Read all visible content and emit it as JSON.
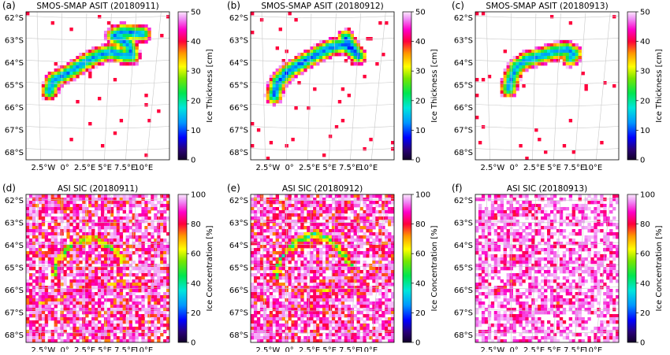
{
  "figure": {
    "panels": [
      {
        "label": "(a)",
        "title": "SMOS-SMAP ASIT (20180911)",
        "cbar_label": "Ice Thickness [cm]",
        "cbar_ticks": [
          "0",
          "10",
          "20",
          "30",
          "40",
          "50"
        ]
      },
      {
        "label": "(b)",
        "title": "SMOS-SMAP ASIT (20180912)",
        "cbar_label": "Ice Thickness [cm]",
        "cbar_ticks": [
          "0",
          "10",
          "20",
          "30",
          "40",
          "50"
        ]
      },
      {
        "label": "(c)",
        "title": "SMOS-SMAP ASIT (20180913)",
        "cbar_label": "Ice Thickness [cm]",
        "cbar_ticks": [
          "0",
          "10",
          "20",
          "30",
          "40",
          "50"
        ]
      },
      {
        "label": "(d)",
        "title": "ASI SIC (20180911)",
        "cbar_label": "Ice Concentration [%]",
        "cbar_ticks": [
          "0",
          "20",
          "40",
          "60",
          "80",
          "100"
        ]
      },
      {
        "label": "(e)",
        "title": "ASI SIC (20180912)",
        "cbar_label": "Ice Concentration [%]",
        "cbar_ticks": [
          "0",
          "20",
          "40",
          "60",
          "80",
          "100"
        ]
      },
      {
        "label": "(f)",
        "title": "ASI SIC (20180913)",
        "cbar_label": "Ice Concentration [%]",
        "cbar_ticks": [
          "0",
          "20",
          "40",
          "60",
          "80",
          "100"
        ]
      }
    ],
    "lat_ticks": [
      "62°S",
      "63°S",
      "64°S",
      "65°S",
      "66°S",
      "67°S",
      "68°S"
    ],
    "lon_ticks": [
      "2.5°W",
      "0°",
      "2.5°E",
      "5°E",
      "7.5°E",
      "10°E"
    ]
  },
  "chart_data": [
    {
      "type": "heatmap",
      "panel": "(a)",
      "title": "SMOS-SMAP ASIT (20180911)",
      "colorbar": {
        "label": "Ice Thickness [cm]",
        "range": [
          0,
          50
        ]
      },
      "lat_range": [
        -68.5,
        -61.8
      ],
      "lon_range": [
        -4,
        12
      ],
      "background_value": 50,
      "features": [
        {
          "kind": "thin-ice band",
          "path_latlon": [
            [
              -65.4,
              -1.4
            ],
            [
              -64.9,
              -0.9
            ],
            [
              -64.5,
              1.0
            ],
            [
              -64.1,
              2.5
            ],
            [
              -63.8,
              4.0
            ],
            [
              -63.6,
              5.5
            ],
            [
              -63.8,
              7.0
            ],
            [
              -63.8,
              7.8
            ],
            [
              -63.3,
              7.5
            ],
            [
              -62.9,
              5.8
            ],
            [
              -62.7,
              6.8
            ],
            [
              -62.8,
              9.0
            ]
          ],
          "min_value": 12
        }
      ]
    },
    {
      "type": "heatmap",
      "panel": "(b)",
      "title": "SMOS-SMAP ASIT (20180912)",
      "colorbar": {
        "label": "Ice Thickness [cm]",
        "range": [
          0,
          50
        ]
      },
      "lat_range": [
        -68.5,
        -61.8
      ],
      "lon_range": [
        -4,
        12
      ],
      "background_value": 50,
      "features": [
        {
          "kind": "thin-ice band",
          "path_latlon": [
            [
              -65.6,
              -1.4
            ],
            [
              -65.0,
              -1.0
            ],
            [
              -64.5,
              0.2
            ],
            [
              -64.1,
              1.8
            ],
            [
              -63.7,
              3.5
            ],
            [
              -63.4,
              5.0
            ],
            [
              -63.3,
              6.5
            ],
            [
              -63.6,
              7.6
            ],
            [
              -63.8,
              8.0
            ],
            [
              -63.4,
              7.2
            ],
            [
              -63.0,
              6.6
            ]
          ],
          "min_value": 10
        }
      ]
    },
    {
      "type": "heatmap",
      "panel": "(c)",
      "title": "SMOS-SMAP ASIT (20180913)",
      "colorbar": {
        "label": "Ice Thickness [cm]",
        "range": [
          0,
          50
        ]
      },
      "lat_range": [
        -68.5,
        -61.8
      ],
      "lon_range": [
        -4,
        12
      ],
      "background_value": 50,
      "features": [
        {
          "kind": "thin-ice band",
          "path_latlon": [
            [
              -65.3,
              -0.3
            ],
            [
              -64.8,
              0.0
            ],
            [
              -64.3,
              0.6
            ],
            [
              -64.0,
              1.6
            ],
            [
              -63.8,
              3.3
            ],
            [
              -63.6,
              4.8
            ],
            [
              -63.5,
              6.2
            ],
            [
              -63.7,
              7.0
            ],
            [
              -63.9,
              6.6
            ]
          ],
          "min_value": 12
        }
      ]
    },
    {
      "type": "heatmap",
      "panel": "(d)",
      "title": "ASI SIC (20180911)",
      "colorbar": {
        "label": "Ice Concentration [%]",
        "range": [
          0,
          100
        ]
      },
      "lat_range": [
        -68.5,
        -61.8
      ],
      "lon_range": [
        -4,
        12
      ],
      "background_value": 100,
      "features": [
        {
          "kind": "low-concentration arc",
          "path_latlon": [
            [
              -65.4,
              -0.8
            ],
            [
              -64.8,
              -0.4
            ],
            [
              -64.2,
              0.8
            ],
            [
              -63.9,
              2.2
            ],
            [
              -63.8,
              3.8
            ],
            [
              -64.1,
              5.0
            ],
            [
              -64.4,
              6.0
            ],
            [
              -64.8,
              6.8
            ]
          ],
          "min_value": 50
        },
        {
          "kind": "low-concentration band",
          "path_latlon": [
            [
              -66.0,
              2.0
            ],
            [
              -65.9,
              4.5
            ],
            [
              -65.8,
              7.0
            ],
            [
              -66.0,
              9.5
            ]
          ],
          "min_value": 75
        },
        {
          "kind": "low-concentration band",
          "path_latlon": [
            [
              -66.8,
              -3.0
            ],
            [
              -66.6,
              -1.0
            ],
            [
              -66.4,
              1.0
            ]
          ],
          "min_value": 80
        }
      ]
    },
    {
      "type": "heatmap",
      "panel": "(e)",
      "title": "ASI SIC (20180912)",
      "colorbar": {
        "label": "Ice Concentration [%]",
        "range": [
          0,
          100
        ]
      },
      "lat_range": [
        -68.5,
        -61.8
      ],
      "lon_range": [
        -4,
        12
      ],
      "background_value": 100,
      "features": [
        {
          "kind": "low-concentration arc",
          "path_latlon": [
            [
              -65.5,
              -1.2
            ],
            [
              -64.8,
              -0.8
            ],
            [
              -64.2,
              0.4
            ],
            [
              -63.8,
              1.8
            ],
            [
              -63.6,
              3.2
            ],
            [
              -63.8,
              4.5
            ],
            [
              -64.2,
              5.5
            ],
            [
              -64.6,
              6.5
            ],
            [
              -65.0,
              7.2
            ]
          ],
          "min_value": 45
        },
        {
          "kind": "low-concentration band",
          "path_latlon": [
            [
              -66.2,
              3.5
            ],
            [
              -66.1,
              5.5
            ],
            [
              -66.2,
              8.0
            ]
          ],
          "min_value": 75
        },
        {
          "kind": "low-concentration band",
          "path_latlon": [
            [
              -67.1,
              -1.0
            ],
            [
              -66.9,
              1.0
            ],
            [
              -66.8,
              3.0
            ]
          ],
          "min_value": 80
        }
      ]
    },
    {
      "type": "heatmap",
      "panel": "(f)",
      "title": "ASI SIC (20180913)",
      "colorbar": {
        "label": "Ice Concentration [%]",
        "range": [
          0,
          100
        ]
      },
      "lat_range": [
        -68.5,
        -61.8
      ],
      "lon_range": [
        -4,
        12
      ],
      "background_value": 100,
      "features": [
        {
          "kind": "low-concentration streak",
          "path_latlon": [
            [
              -65.0,
              -0.5
            ],
            [
              -64.6,
              1.0
            ],
            [
              -64.3,
              2.5
            ]
          ],
          "min_value": 85
        },
        {
          "kind": "low-concentration streak",
          "path_latlon": [
            [
              -66.3,
              -2.0
            ],
            [
              -65.9,
              -0.5
            ],
            [
              -65.5,
              1.5
            ]
          ],
          "min_value": 85
        },
        {
          "kind": "low-concentration streak",
          "path_latlon": [
            [
              -67.4,
              0.5
            ],
            [
              -66.9,
              3.0
            ],
            [
              -66.6,
              5.5
            ]
          ],
          "min_value": 85
        },
        {
          "kind": "low-concentration streak",
          "path_latlon": [
            [
              -62.8,
              -3.0
            ],
            [
              -62.6,
              0.0
            ],
            [
              -62.5,
              3.0
            ]
          ],
          "min_value": 90
        }
      ]
    }
  ]
}
